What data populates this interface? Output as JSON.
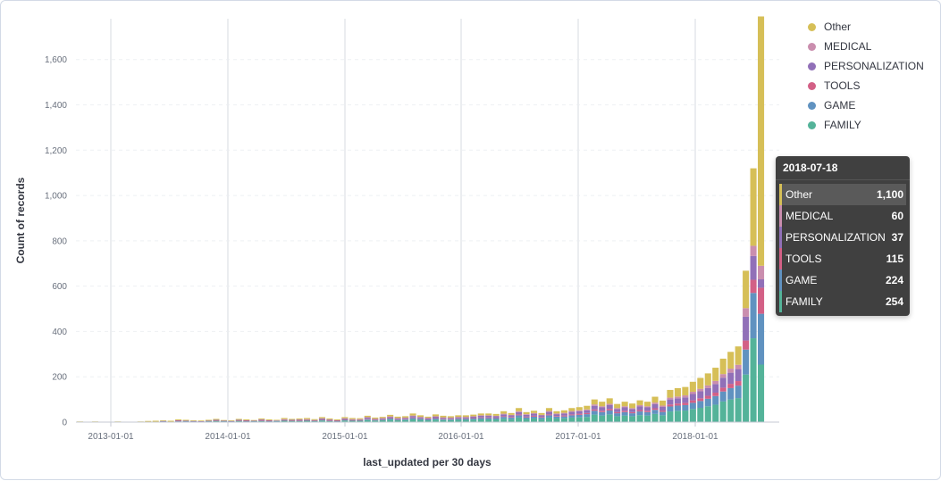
{
  "colors": {
    "Other": "#d6bf57",
    "MEDICAL": "#ca8eae",
    "PERSONALIZATION": "#9170b8",
    "TOOLS": "#d36086",
    "GAME": "#6092c0",
    "FAMILY": "#54b399"
  },
  "tooltip": {
    "date": "2018-07-18",
    "rows": [
      {
        "name": "Other",
        "value": "1,100"
      },
      {
        "name": "MEDICAL",
        "value": "60"
      },
      {
        "name": "PERSONALIZATION",
        "value": "37"
      },
      {
        "name": "TOOLS",
        "value": "115"
      },
      {
        "name": "GAME",
        "value": "224"
      },
      {
        "name": "FAMILY",
        "value": "254"
      }
    ]
  },
  "chart_data": {
    "type": "bar",
    "stacked": true,
    "xlabel": "last_updated per 30 days",
    "ylabel": "Count of records",
    "ylim": [
      0,
      1780
    ],
    "yticks": [
      0,
      200,
      400,
      600,
      800,
      1000,
      1200,
      1400,
      1600
    ],
    "ytick_labels": [
      "0",
      "200",
      "400",
      "600",
      "800",
      "1,000",
      "1,200",
      "1,400",
      "1,600"
    ],
    "xticks": [
      "2013-01-01",
      "2014-01-01",
      "2015-01-01",
      "2016-01-01",
      "2017-01-01",
      "2018-01-01"
    ],
    "legend": [
      "Other",
      "MEDICAL",
      "PERSONALIZATION",
      "TOOLS",
      "GAME",
      "FAMILY"
    ],
    "legend_position": "top-right",
    "grid": true,
    "series_order_bottom_to_top": [
      "FAMILY",
      "GAME",
      "TOOLS",
      "PERSONALIZATION",
      "MEDICAL",
      "Other"
    ],
    "totals": [
      3,
      2,
      3,
      2,
      2,
      3,
      2,
      1,
      3,
      5,
      6,
      8,
      6,
      12,
      10,
      8,
      7,
      10,
      14,
      9,
      8,
      14,
      12,
      9,
      16,
      12,
      10,
      18,
      14,
      16,
      18,
      13,
      22,
      16,
      12,
      22,
      18,
      17,
      28,
      20,
      23,
      32,
      24,
      26,
      38,
      30,
      24,
      34,
      28,
      26,
      30,
      30,
      33,
      38,
      38,
      36,
      48,
      40,
      62,
      44,
      50,
      40,
      62,
      48,
      52,
      62,
      66,
      72,
      100,
      90,
      105,
      80,
      90,
      82,
      96,
      90,
      112,
      95,
      142,
      150,
      155,
      178,
      195,
      215,
      240,
      280,
      310,
      334,
      668,
      1120,
      1790
    ],
    "stacks": [
      [
        1,
        0,
        0,
        0,
        0,
        2
      ],
      [
        1,
        0,
        0,
        0,
        0,
        1
      ],
      [
        1,
        0,
        0,
        0,
        0,
        2
      ],
      [
        1,
        0,
        0,
        0,
        0,
        1
      ],
      [
        1,
        0,
        0,
        0,
        0,
        1
      ],
      [
        1,
        0,
        0,
        0,
        0,
        2
      ],
      [
        1,
        0,
        0,
        0,
        0,
        1
      ],
      [
        0,
        0,
        0,
        0,
        0,
        1
      ],
      [
        1,
        0,
        0,
        0,
        0,
        2
      ],
      [
        2,
        0,
        0,
        0,
        0,
        3
      ],
      [
        2,
        0,
        0,
        0,
        0,
        4
      ],
      [
        3,
        1,
        0,
        1,
        0,
        3
      ],
      [
        2,
        0,
        0,
        0,
        0,
        4
      ],
      [
        3,
        2,
        1,
        2,
        0,
        4
      ],
      [
        3,
        1,
        0,
        2,
        0,
        4
      ],
      [
        3,
        1,
        0,
        1,
        0,
        3
      ],
      [
        3,
        0,
        0,
        1,
        0,
        3
      ],
      [
        4,
        1,
        0,
        1,
        0,
        4
      ],
      [
        5,
        2,
        1,
        2,
        0,
        4
      ],
      [
        4,
        1,
        0,
        1,
        0,
        3
      ],
      [
        3,
        1,
        0,
        1,
        0,
        3
      ],
      [
        5,
        2,
        1,
        2,
        0,
        4
      ],
      [
        4,
        1,
        1,
        2,
        0,
        4
      ],
      [
        4,
        1,
        0,
        1,
        0,
        3
      ],
      [
        5,
        2,
        1,
        3,
        1,
        4
      ],
      [
        4,
        1,
        1,
        2,
        0,
        4
      ],
      [
        4,
        1,
        0,
        2,
        0,
        3
      ],
      [
        6,
        2,
        1,
        3,
        1,
        5
      ],
      [
        5,
        2,
        1,
        2,
        0,
        4
      ],
      [
        5,
        2,
        1,
        3,
        1,
        4
      ],
      [
        6,
        2,
        1,
        3,
        1,
        5
      ],
      [
        5,
        1,
        1,
        2,
        0,
        4
      ],
      [
        7,
        3,
        2,
        4,
        1,
        5
      ],
      [
        5,
        2,
        1,
        3,
        1,
        4
      ],
      [
        4,
        1,
        1,
        2,
        0,
        4
      ],
      [
        7,
        3,
        2,
        4,
        1,
        5
      ],
      [
        6,
        2,
        1,
        3,
        1,
        5
      ],
      [
        6,
        2,
        1,
        3,
        1,
        4
      ],
      [
        9,
        4,
        2,
        5,
        2,
        6
      ],
      [
        7,
        3,
        1,
        3,
        1,
        5
      ],
      [
        8,
        3,
        2,
        4,
        1,
        5
      ],
      [
        11,
        5,
        2,
        5,
        2,
        7
      ],
      [
        8,
        3,
        2,
        4,
        1,
        6
      ],
      [
        9,
        4,
        2,
        4,
        1,
        6
      ],
      [
        12,
        6,
        3,
        6,
        2,
        9
      ],
      [
        10,
        5,
        2,
        5,
        1,
        7
      ],
      [
        8,
        4,
        2,
        4,
        1,
        5
      ],
      [
        11,
        5,
        2,
        6,
        2,
        8
      ],
      [
        9,
        4,
        2,
        5,
        1,
        7
      ],
      [
        9,
        4,
        2,
        4,
        1,
        6
      ],
      [
        10,
        5,
        2,
        5,
        1,
        7
      ],
      [
        10,
        5,
        2,
        5,
        1,
        7
      ],
      [
        11,
        5,
        2,
        6,
        2,
        7
      ],
      [
        12,
        6,
        3,
        7,
        2,
        8
      ],
      [
        12,
        6,
        3,
        7,
        2,
        8
      ],
      [
        12,
        6,
        2,
        6,
        2,
        8
      ],
      [
        15,
        8,
        3,
        8,
        3,
        11
      ],
      [
        13,
        7,
        3,
        7,
        2,
        8
      ],
      [
        20,
        10,
        4,
        10,
        4,
        14
      ],
      [
        14,
        7,
        3,
        8,
        3,
        9
      ],
      [
        16,
        8,
        4,
        9,
        3,
        10
      ],
      [
        13,
        7,
        3,
        7,
        2,
        8
      ],
      [
        20,
        10,
        4,
        11,
        4,
        13
      ],
      [
        16,
        8,
        3,
        8,
        3,
        10
      ],
      [
        17,
        8,
        4,
        9,
        3,
        11
      ],
      [
        20,
        10,
        4,
        11,
        4,
        13
      ],
      [
        21,
        11,
        5,
        11,
        4,
        14
      ],
      [
        23,
        12,
        5,
        12,
        4,
        16
      ],
      [
        33,
        17,
        6,
        16,
        6,
        22
      ],
      [
        29,
        15,
        6,
        15,
        5,
        20
      ],
      [
        34,
        17,
        7,
        17,
        6,
        24
      ],
      [
        26,
        13,
        5,
        13,
        5,
        18
      ],
      [
        29,
        15,
        6,
        15,
        5,
        20
      ],
      [
        26,
        13,
        5,
        13,
        5,
        20
      ],
      [
        31,
        16,
        6,
        16,
        6,
        21
      ],
      [
        29,
        15,
        6,
        15,
        5,
        20
      ],
      [
        36,
        18,
        7,
        18,
        7,
        26
      ],
      [
        30,
        15,
        6,
        16,
        6,
        22
      ],
      [
        47,
        22,
        9,
        22,
        8,
        34
      ],
      [
        50,
        23,
        9,
        23,
        8,
        37
      ],
      [
        51,
        24,
        10,
        24,
        9,
        37
      ],
      [
        58,
        27,
        11,
        28,
        10,
        44
      ],
      [
        63,
        30,
        12,
        31,
        11,
        48
      ],
      [
        70,
        33,
        13,
        34,
        12,
        53
      ],
      [
        77,
        38,
        15,
        38,
        14,
        58
      ],
      [
        91,
        44,
        17,
        44,
        16,
        68
      ],
      [
        100,
        50,
        19,
        49,
        18,
        74
      ],
      [
        106,
        55,
        20,
        53,
        19,
        81
      ],
      [
        210,
        110,
        40,
        105,
        38,
        165
      ],
      [
        370,
        200,
        58,
        105,
        45,
        342
      ],
      [
        254,
        224,
        115,
        37,
        60,
        1100
      ]
    ]
  }
}
